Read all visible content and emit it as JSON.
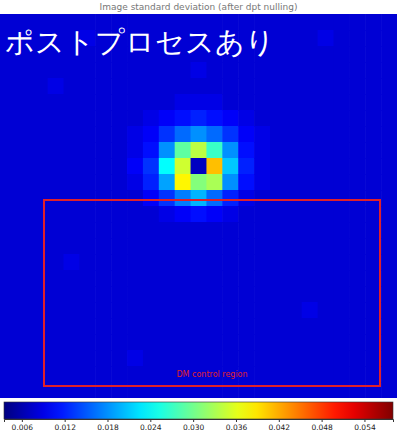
{
  "chart_data": {
    "type": "heatmap",
    "title": "Image standard deviation (after dpt nulling)",
    "annotations": [
      "ポストプロセスあり",
      "DM control region"
    ],
    "color": "jet",
    "tick_labels": false,
    "cells": [
      [
        0.008,
        0.008,
        0.008,
        0.008,
        0.008,
        0.008,
        0.008,
        0.008,
        0.008,
        0.008,
        0.008,
        0.008,
        0.008,
        0.008,
        0.008,
        0.008,
        0.008,
        0.008,
        0.008,
        0.008,
        0.008,
        0.008,
        0.008,
        0.008,
        0.008
      ],
      [
        0.008,
        0.008,
        0.008,
        0.008,
        0.008,
        0.009,
        0.008,
        0.008,
        0.008,
        0.008,
        0.008,
        0.008,
        0.008,
        0.008,
        0.008,
        0.008,
        0.008,
        0.008,
        0.008,
        0.008,
        0.009,
        0.008,
        0.008,
        0.008,
        0.008
      ],
      [
        0.008,
        0.008,
        0.008,
        0.008,
        0.008,
        0.008,
        0.008,
        0.008,
        0.008,
        0.008,
        0.008,
        0.008,
        0.008,
        0.008,
        0.008,
        0.008,
        0.008,
        0.008,
        0.008,
        0.008,
        0.008,
        0.008,
        0.008,
        0.008,
        0.008
      ],
      [
        0.008,
        0.008,
        0.008,
        0.008,
        0.008,
        0.008,
        0.008,
        0.008,
        0.008,
        0.008,
        0.008,
        0.008,
        0.009,
        0.008,
        0.008,
        0.008,
        0.008,
        0.008,
        0.008,
        0.008,
        0.008,
        0.008,
        0.008,
        0.008,
        0.008
      ],
      [
        0.008,
        0.008,
        0.008,
        0.009,
        0.008,
        0.008,
        0.008,
        0.008,
        0.008,
        0.008,
        0.008,
        0.008,
        0.008,
        0.008,
        0.008,
        0.008,
        0.008,
        0.008,
        0.008,
        0.008,
        0.008,
        0.008,
        0.008,
        0.008,
        0.008
      ],
      [
        0.008,
        0.008,
        0.008,
        0.008,
        0.008,
        0.008,
        0.008,
        0.008,
        0.008,
        0.008,
        0.008,
        0.009,
        0.009,
        0.009,
        0.008,
        0.008,
        0.008,
        0.008,
        0.008,
        0.008,
        0.008,
        0.008,
        0.008,
        0.008,
        0.008
      ],
      [
        0.008,
        0.008,
        0.008,
        0.008,
        0.008,
        0.008,
        0.008,
        0.008,
        0.008,
        0.009,
        0.01,
        0.011,
        0.012,
        0.011,
        0.01,
        0.009,
        0.008,
        0.008,
        0.008,
        0.008,
        0.008,
        0.008,
        0.008,
        0.008,
        0.008
      ],
      [
        0.008,
        0.008,
        0.008,
        0.008,
        0.008,
        0.008,
        0.008,
        0.008,
        0.009,
        0.01,
        0.013,
        0.016,
        0.018,
        0.016,
        0.013,
        0.01,
        0.009,
        0.008,
        0.008,
        0.008,
        0.008,
        0.008,
        0.008,
        0.008,
        0.008
      ],
      [
        0.008,
        0.008,
        0.008,
        0.008,
        0.008,
        0.008,
        0.008,
        0.008,
        0.009,
        0.011,
        0.018,
        0.029,
        0.034,
        0.027,
        0.018,
        0.011,
        0.009,
        0.008,
        0.008,
        0.008,
        0.008,
        0.008,
        0.008,
        0.008,
        0.008
      ],
      [
        0.008,
        0.008,
        0.008,
        0.008,
        0.008,
        0.008,
        0.008,
        0.008,
        0.01,
        0.013,
        0.024,
        0.035,
        0.007,
        0.041,
        0.021,
        0.012,
        0.009,
        0.008,
        0.008,
        0.008,
        0.008,
        0.008,
        0.008,
        0.008,
        0.008
      ],
      [
        0.008,
        0.008,
        0.008,
        0.008,
        0.008,
        0.008,
        0.008,
        0.008,
        0.009,
        0.012,
        0.019,
        0.038,
        0.031,
        0.033,
        0.018,
        0.011,
        0.009,
        0.008,
        0.008,
        0.008,
        0.008,
        0.008,
        0.008,
        0.008,
        0.008
      ],
      [
        0.008,
        0.008,
        0.008,
        0.008,
        0.008,
        0.008,
        0.008,
        0.008,
        0.008,
        0.01,
        0.013,
        0.017,
        0.02,
        0.016,
        0.012,
        0.009,
        0.008,
        0.008,
        0.008,
        0.008,
        0.008,
        0.008,
        0.008,
        0.008,
        0.008
      ],
      [
        0.008,
        0.008,
        0.008,
        0.008,
        0.008,
        0.008,
        0.008,
        0.008,
        0.008,
        0.008,
        0.009,
        0.01,
        0.011,
        0.01,
        0.009,
        0.008,
        0.008,
        0.008,
        0.008,
        0.008,
        0.008,
        0.008,
        0.008,
        0.008,
        0.008
      ],
      [
        0.008,
        0.008,
        0.008,
        0.008,
        0.008,
        0.008,
        0.008,
        0.008,
        0.008,
        0.008,
        0.008,
        0.008,
        0.008,
        0.008,
        0.008,
        0.008,
        0.008,
        0.008,
        0.008,
        0.008,
        0.008,
        0.008,
        0.008,
        0.008,
        0.008
      ],
      [
        0.008,
        0.008,
        0.008,
        0.008,
        0.008,
        0.008,
        0.008,
        0.008,
        0.008,
        0.008,
        0.008,
        0.008,
        0.008,
        0.008,
        0.008,
        0.008,
        0.008,
        0.008,
        0.008,
        0.008,
        0.008,
        0.008,
        0.008,
        0.008,
        0.008
      ],
      [
        0.008,
        0.008,
        0.008,
        0.008,
        0.009,
        0.008,
        0.008,
        0.008,
        0.008,
        0.008,
        0.008,
        0.008,
        0.008,
        0.008,
        0.008,
        0.008,
        0.008,
        0.008,
        0.008,
        0.008,
        0.008,
        0.008,
        0.008,
        0.008,
        0.008
      ],
      [
        0.008,
        0.008,
        0.008,
        0.008,
        0.008,
        0.008,
        0.008,
        0.008,
        0.008,
        0.008,
        0.008,
        0.008,
        0.008,
        0.008,
        0.008,
        0.008,
        0.008,
        0.008,
        0.008,
        0.008,
        0.008,
        0.008,
        0.008,
        0.008,
        0.008
      ],
      [
        0.008,
        0.008,
        0.008,
        0.008,
        0.008,
        0.008,
        0.008,
        0.008,
        0.008,
        0.008,
        0.008,
        0.008,
        0.008,
        0.008,
        0.008,
        0.008,
        0.008,
        0.008,
        0.008,
        0.008,
        0.008,
        0.008,
        0.008,
        0.008,
        0.008
      ],
      [
        0.008,
        0.008,
        0.008,
        0.008,
        0.008,
        0.008,
        0.008,
        0.008,
        0.008,
        0.008,
        0.008,
        0.008,
        0.008,
        0.008,
        0.008,
        0.008,
        0.008,
        0.008,
        0.008,
        0.009,
        0.008,
        0.008,
        0.008,
        0.008,
        0.008
      ],
      [
        0.008,
        0.008,
        0.008,
        0.008,
        0.008,
        0.008,
        0.008,
        0.008,
        0.008,
        0.008,
        0.008,
        0.008,
        0.008,
        0.008,
        0.008,
        0.008,
        0.008,
        0.008,
        0.008,
        0.008,
        0.008,
        0.008,
        0.008,
        0.008,
        0.008
      ],
      [
        0.008,
        0.008,
        0.008,
        0.008,
        0.008,
        0.008,
        0.008,
        0.008,
        0.008,
        0.008,
        0.008,
        0.008,
        0.008,
        0.008,
        0.008,
        0.008,
        0.008,
        0.008,
        0.008,
        0.008,
        0.008,
        0.008,
        0.008,
        0.008,
        0.008
      ],
      [
        0.008,
        0.008,
        0.008,
        0.008,
        0.008,
        0.008,
        0.008,
        0.008,
        0.009,
        0.008,
        0.008,
        0.008,
        0.008,
        0.008,
        0.008,
        0.008,
        0.008,
        0.008,
        0.008,
        0.008,
        0.008,
        0.008,
        0.008,
        0.008,
        0.008
      ],
      [
        0.008,
        0.008,
        0.008,
        0.008,
        0.008,
        0.008,
        0.008,
        0.008,
        0.008,
        0.008,
        0.008,
        0.008,
        0.008,
        0.008,
        0.008,
        0.008,
        0.008,
        0.008,
        0.008,
        0.008,
        0.008,
        0.008,
        0.008,
        0.008,
        0.008
      ],
      [
        0.008,
        0.008,
        0.008,
        0.008,
        0.008,
        0.008,
        0.008,
        0.008,
        0.008,
        0.008,
        0.008,
        0.008,
        0.008,
        0.008,
        0.008,
        0.008,
        0.008,
        0.008,
        0.008,
        0.008,
        0.008,
        0.008,
        0.008,
        0.008,
        0.008
      ]
    ],
    "colorbar": {
      "range": [
        0.0035,
        0.058
      ],
      "ticks": [
        0.006,
        0.012,
        0.018,
        0.024,
        {
          "value": 0.03,
          "label": "0.030"
        },
        0.036,
        0.042,
        0.048,
        0.054
      ]
    }
  }
}
